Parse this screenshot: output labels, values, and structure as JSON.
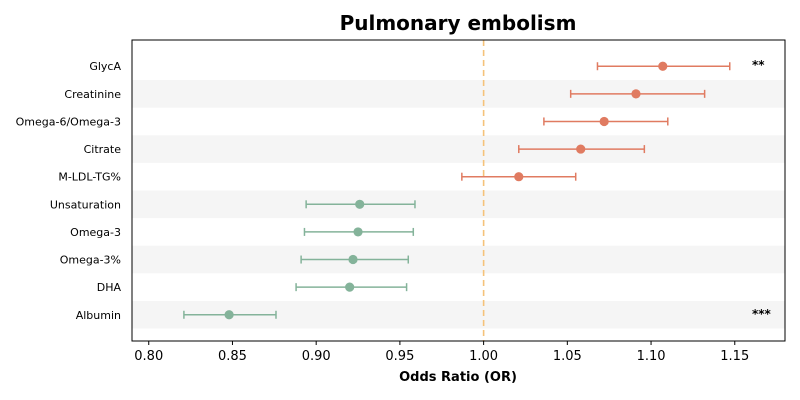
{
  "chart_data": {
    "type": "forest",
    "title": "Pulmonary embolism",
    "xlabel": "Odds Ratio (OR)",
    "xlim": [
      0.79,
      1.18
    ],
    "xticks": [
      "0.80",
      "0.85",
      "0.90",
      "0.95",
      "1.00",
      "1.05",
      "1.10",
      "1.15"
    ],
    "reference_line": 1.0,
    "grid": false,
    "colors": {
      "positive": "#e07b61",
      "negative": "#84b39a",
      "reference": "#f5c27a",
      "band": "#f5f5f5"
    },
    "rows": [
      {
        "label": "GlycA",
        "or": 1.107,
        "lo": 1.068,
        "hi": 1.147,
        "sig": "**"
      },
      {
        "label": "Creatinine",
        "or": 1.091,
        "lo": 1.052,
        "hi": 1.132,
        "sig": ""
      },
      {
        "label": "Omega-6/Omega-3",
        "or": 1.072,
        "lo": 1.036,
        "hi": 1.11,
        "sig": ""
      },
      {
        "label": "Citrate",
        "or": 1.058,
        "lo": 1.021,
        "hi": 1.096,
        "sig": ""
      },
      {
        "label": "M-LDL-TG%",
        "or": 1.021,
        "lo": 0.987,
        "hi": 1.055,
        "sig": ""
      },
      {
        "label": "Unsaturation",
        "or": 0.926,
        "lo": 0.894,
        "hi": 0.959,
        "sig": ""
      },
      {
        "label": "Omega-3",
        "or": 0.925,
        "lo": 0.893,
        "hi": 0.958,
        "sig": ""
      },
      {
        "label": "Omega-3%",
        "or": 0.922,
        "lo": 0.891,
        "hi": 0.955,
        "sig": ""
      },
      {
        "label": "DHA",
        "or": 0.92,
        "lo": 0.888,
        "hi": 0.954,
        "sig": ""
      },
      {
        "label": "Albumin",
        "or": 0.848,
        "lo": 0.821,
        "hi": 0.876,
        "sig": "***"
      }
    ]
  }
}
